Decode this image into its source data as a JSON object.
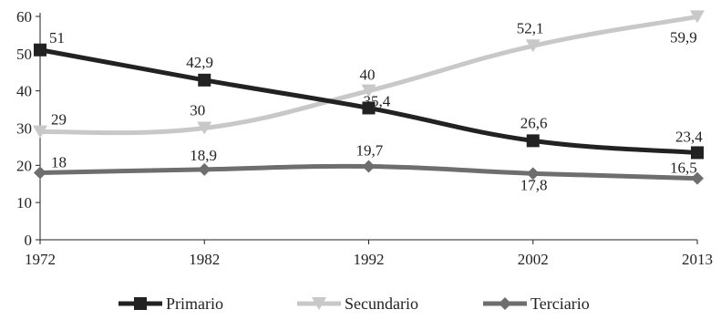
{
  "chart_data": {
    "type": "line",
    "title": "",
    "xlabel": "",
    "ylabel": "",
    "x": [
      "1972",
      "1982",
      "1992",
      "2002",
      "2013"
    ],
    "ylim": [
      0,
      60
    ],
    "yticks": [
      "0",
      "10",
      "20",
      "30",
      "40",
      "50",
      "60"
    ],
    "grid": false,
    "legend_position": "bottom",
    "series": [
      {
        "name": "Primario",
        "color": "#222222",
        "marker": "square",
        "values": [
          51,
          42.9,
          35.4,
          26.6,
          23.4
        ],
        "labels": [
          "51",
          "42,9",
          "35,4",
          "26,6",
          "23,4"
        ]
      },
      {
        "name": "Secundario",
        "color": "#c8c8c8",
        "marker": "triangle-down",
        "values": [
          29,
          30,
          40,
          52.1,
          59.9
        ],
        "labels": [
          "29",
          "30",
          "40",
          "52,1",
          "59,9"
        ]
      },
      {
        "name": "Terciario",
        "color": "#6e6e6e",
        "marker": "diamond",
        "values": [
          18,
          18.9,
          19.7,
          17.8,
          16.5
        ],
        "labels": [
          "18",
          "18,9",
          "19,7",
          "17,8",
          "16,5"
        ]
      }
    ]
  }
}
